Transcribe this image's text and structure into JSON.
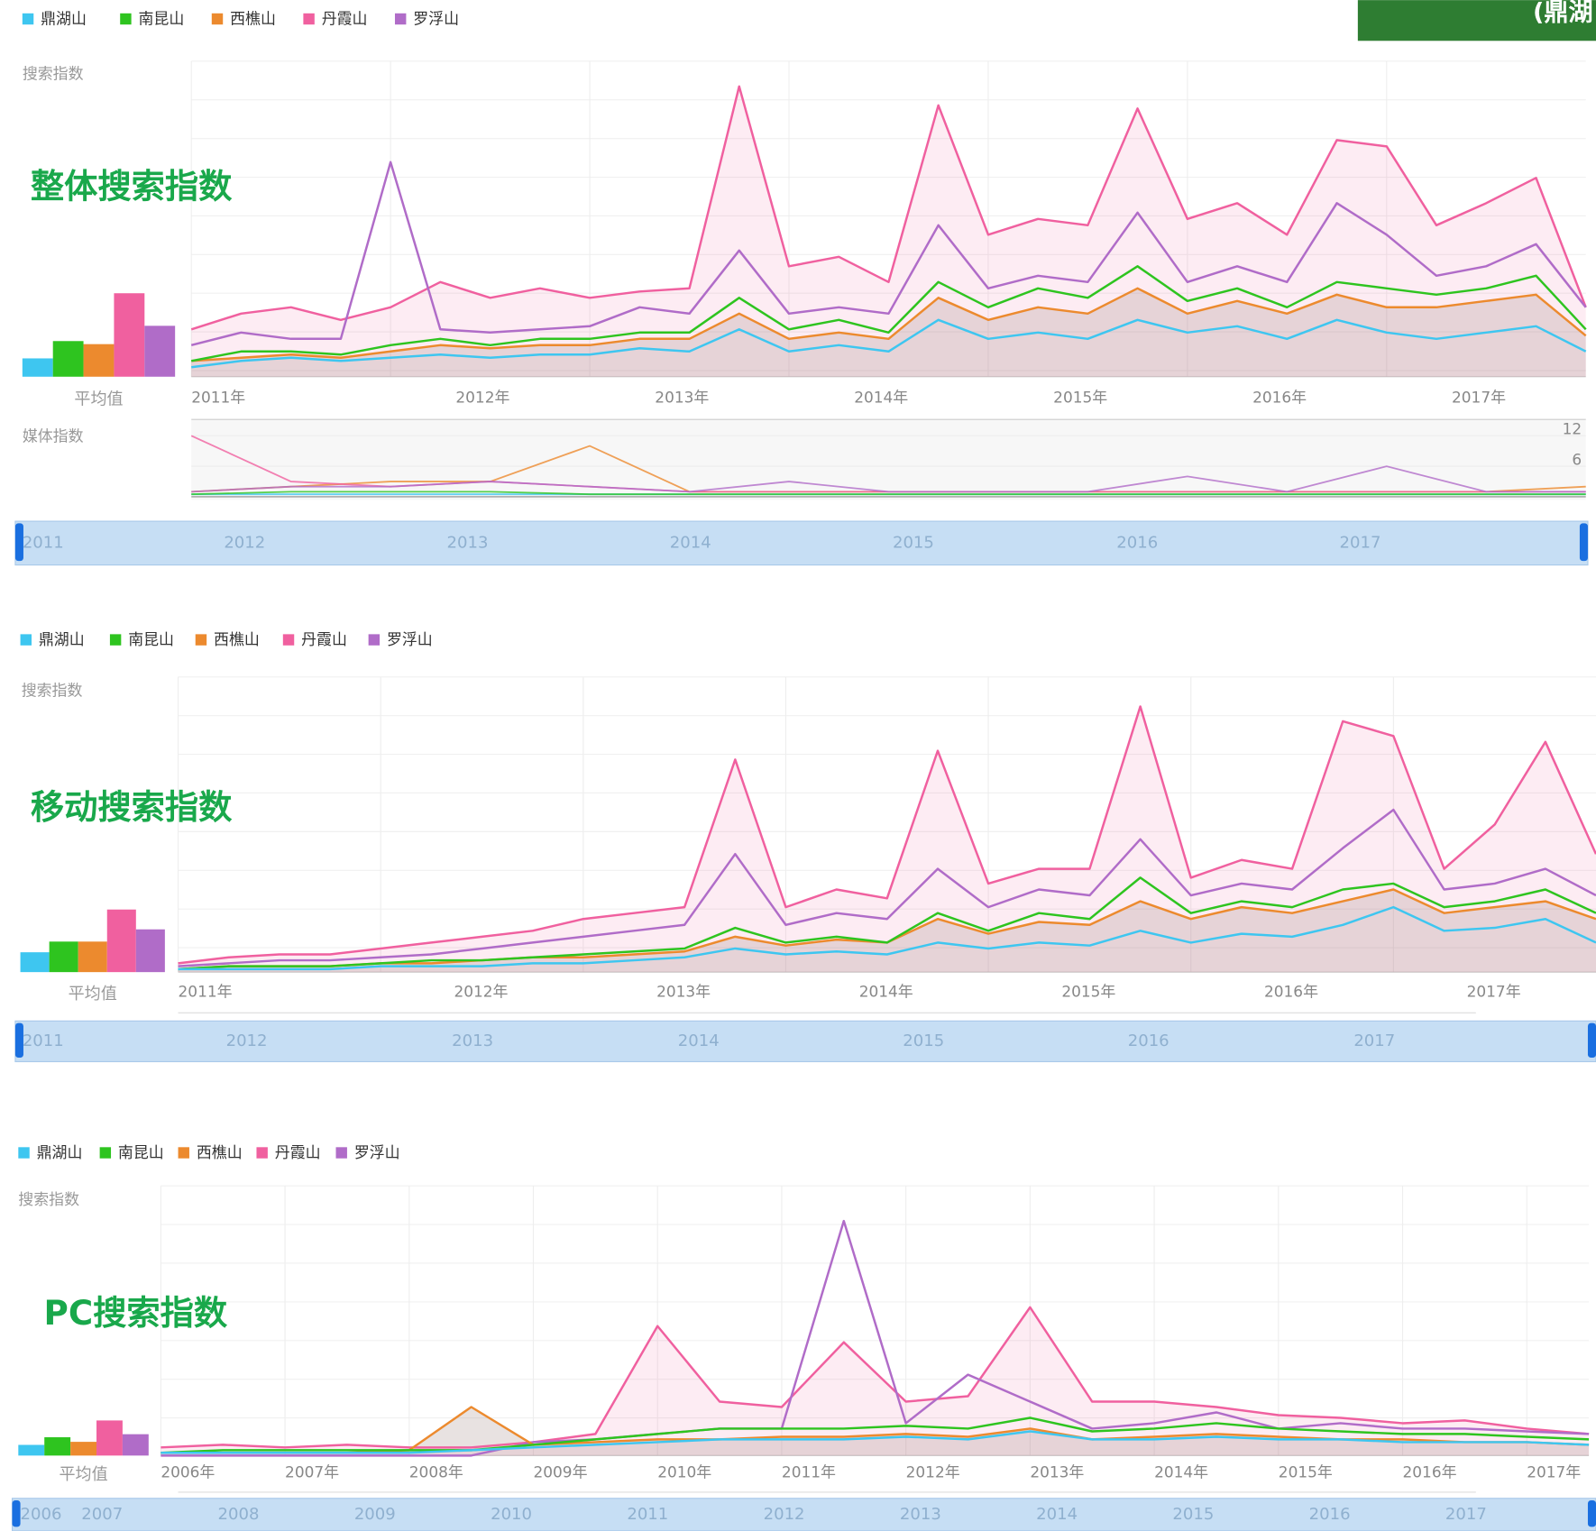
{
  "header_badge": "(鼎湖",
  "chart_data": [
    {
      "type": "line",
      "title": "整体搜索指数",
      "y_label": "搜索指数",
      "x": [
        2011,
        2011.25,
        2011.5,
        2011.75,
        2012,
        2012.25,
        2012.5,
        2012.75,
        2013,
        2013.25,
        2013.5,
        2013.75,
        2014,
        2014.25,
        2014.5,
        2014.75,
        2015,
        2015.25,
        2015.5,
        2015.75,
        2016,
        2016.25,
        2016.5,
        2016.75,
        2017,
        2017.25,
        2017.5,
        2017.75,
        2018
      ],
      "xlim": [
        2011,
        2018
      ],
      "xticks": [
        {
          "value": 2011,
          "label": "2011年"
        },
        {
          "value": 2012,
          "label": "2012年"
        },
        {
          "value": 2013,
          "label": "2013年"
        },
        {
          "value": 2014,
          "label": "2014年"
        },
        {
          "value": 2015,
          "label": "2015年"
        },
        {
          "value": 2016,
          "label": "2016年"
        },
        {
          "value": 2017,
          "label": "2017年"
        }
      ],
      "ylim": [
        0,
        100
      ],
      "grid": true,
      "series": [
        {
          "name": "鼎湖山",
          "color": "#3ec6f0",
          "values": [
            3,
            5,
            6,
            5,
            6,
            7,
            6,
            7,
            7,
            9,
            8,
            15,
            8,
            10,
            8,
            18,
            12,
            14,
            12,
            18,
            14,
            16,
            12,
            18,
            14,
            12,
            14,
            16,
            8
          ]
        },
        {
          "name": "南昆山",
          "color": "#2ec41f",
          "values": [
            5,
            8,
            8,
            7,
            10,
            12,
            10,
            12,
            12,
            14,
            14,
            25,
            15,
            18,
            14,
            30,
            22,
            28,
            25,
            35,
            24,
            28,
            22,
            30,
            28,
            26,
            28,
            32,
            15
          ]
        },
        {
          "name": "西樵山",
          "color": "#ec8a2e",
          "values": [
            5,
            6,
            7,
            6,
            8,
            10,
            9,
            10,
            10,
            12,
            12,
            20,
            12,
            14,
            12,
            25,
            18,
            22,
            20,
            28,
            20,
            24,
            20,
            26,
            22,
            22,
            24,
            26,
            13
          ]
        },
        {
          "name": "丹霞山",
          "color": "#f0609f",
          "values": [
            15,
            20,
            22,
            18,
            22,
            30,
            25,
            28,
            25,
            27,
            28,
            92,
            35,
            38,
            30,
            86,
            45,
            50,
            48,
            85,
            50,
            55,
            45,
            75,
            73,
            48,
            55,
            63,
            22
          ]
        },
        {
          "name": "罗浮山",
          "color": "#b06cc8",
          "values": [
            10,
            14,
            12,
            12,
            68,
            15,
            14,
            15,
            16,
            22,
            20,
            40,
            20,
            22,
            20,
            48,
            28,
            32,
            30,
            52,
            30,
            35,
            30,
            55,
            45,
            32,
            35,
            42,
            22
          ]
        }
      ],
      "average": {
        "label": "平均值",
        "values": [
          9,
          17.5,
          16,
          41,
          25
        ]
      },
      "media": {
        "label": "媒体指数",
        "x": [
          2011,
          2011.5,
          2012,
          2012.5,
          2013,
          2013.5,
          2014,
          2014.5,
          2015,
          2015.5,
          2016,
          2016.5,
          2017,
          2017.5,
          2018
        ],
        "ylim": [
          0,
          14
        ],
        "yticks": [
          6,
          12
        ],
        "series": [
          {
            "color": "#3ec6f0",
            "values": [
              0.5,
              0.5,
              0.5,
              0.5,
              0.5,
              0.5,
              0.5,
              0.5,
              0.5,
              0.5,
              0.5,
              0.5,
              0.5,
              0.5,
              0.5
            ]
          },
          {
            "color": "#2ec41f",
            "values": [
              0.5,
              1,
              1,
              1,
              0.5,
              0.5,
              0.5,
              0.5,
              0.5,
              0.5,
              0.5,
              0.5,
              0.5,
              0.5,
              0.5
            ]
          },
          {
            "color": "#ec8a2e",
            "values": [
              1,
              2,
              3,
              3,
              10,
              1,
              1,
              1,
              1,
              1,
              1,
              1,
              1,
              1,
              2
            ]
          },
          {
            "color": "#f0609f",
            "values": [
              12,
              3,
              2,
              3,
              2,
              1,
              1,
              1,
              1,
              1,
              1,
              1,
              1,
              1,
              1
            ]
          },
          {
            "color": "#b06cc8",
            "values": [
              1,
              2,
              2,
              3,
              2,
              1,
              3,
              1,
              1,
              1,
              4,
              1,
              6,
              1,
              1
            ]
          }
        ]
      },
      "navigator": [
        "2011",
        "2012",
        "2013",
        "2014",
        "2015",
        "2016",
        "2017"
      ]
    },
    {
      "type": "line",
      "title": "移动搜索指数",
      "y_label": "搜索指数",
      "x": [
        2011,
        2011.25,
        2011.5,
        2011.75,
        2012,
        2012.25,
        2012.5,
        2012.75,
        2013,
        2013.25,
        2013.5,
        2013.75,
        2014,
        2014.25,
        2014.5,
        2014.75,
        2015,
        2015.25,
        2015.5,
        2015.75,
        2016,
        2016.25,
        2016.5,
        2016.75,
        2017,
        2017.25,
        2017.5,
        2017.75,
        2018
      ],
      "xlim": [
        2011,
        2018
      ],
      "xticks": [
        {
          "value": 2011,
          "label": "2011年"
        },
        {
          "value": 2012,
          "label": "2012年"
        },
        {
          "value": 2013,
          "label": "2013年"
        },
        {
          "value": 2014,
          "label": "2014年"
        },
        {
          "value": 2015,
          "label": "2015年"
        },
        {
          "value": 2016,
          "label": "2016年"
        },
        {
          "value": 2017,
          "label": "2017年"
        }
      ],
      "ylim": [
        0,
        100
      ],
      "grid": true,
      "series": [
        {
          "name": "鼎湖山",
          "color": "#3ec6f0",
          "values": [
            1,
            1,
            1,
            1,
            2,
            2,
            2,
            3,
            3,
            4,
            5,
            8,
            6,
            7,
            6,
            10,
            8,
            10,
            9,
            14,
            10,
            13,
            12,
            16,
            22,
            14,
            15,
            18,
            10
          ]
        },
        {
          "name": "南昆山",
          "color": "#2ec41f",
          "values": [
            1,
            2,
            2,
            2,
            3,
            4,
            4,
            5,
            6,
            7,
            8,
            15,
            10,
            12,
            10,
            20,
            14,
            20,
            18,
            32,
            20,
            24,
            22,
            28,
            30,
            22,
            24,
            28,
            20
          ]
        },
        {
          "name": "西樵山",
          "color": "#ec8a2e",
          "values": [
            1,
            2,
            2,
            2,
            3,
            3,
            4,
            5,
            5,
            6,
            7,
            12,
            9,
            11,
            10,
            18,
            13,
            17,
            16,
            24,
            18,
            22,
            20,
            24,
            28,
            20,
            22,
            24,
            18
          ]
        },
        {
          "name": "丹霞山",
          "color": "#f0609f",
          "values": [
            3,
            5,
            6,
            6,
            8,
            10,
            12,
            14,
            18,
            20,
            22,
            72,
            22,
            28,
            25,
            75,
            30,
            35,
            35,
            90,
            32,
            38,
            35,
            85,
            80,
            35,
            50,
            78,
            40
          ]
        },
        {
          "name": "罗浮山",
          "color": "#b06cc8",
          "values": [
            2,
            3,
            4,
            4,
            5,
            6,
            8,
            10,
            12,
            14,
            16,
            40,
            16,
            20,
            18,
            35,
            22,
            28,
            26,
            45,
            26,
            30,
            28,
            42,
            55,
            28,
            30,
            35,
            26
          ]
        }
      ],
      "average": {
        "label": "平均值",
        "values": [
          13,
          20,
          20,
          41,
          28
        ]
      },
      "navigator": [
        "2011",
        "2012",
        "2013",
        "2014",
        "2015",
        "2016",
        "2017"
      ]
    },
    {
      "type": "line",
      "title": "PC搜索指数",
      "y_label": "搜索指数",
      "x": [
        2006,
        2006.5,
        2007,
        2007.5,
        2008,
        2008.5,
        2009,
        2009.5,
        2010,
        2010.5,
        2011,
        2011.5,
        2012,
        2012.5,
        2013,
        2013.5,
        2014,
        2014.5,
        2015,
        2015.5,
        2016,
        2016.5,
        2017,
        2017.5
      ],
      "xlim": [
        2006,
        2017.5
      ],
      "xticks": [
        {
          "value": 2006,
          "label": "2006年"
        },
        {
          "value": 2007,
          "label": "2007年"
        },
        {
          "value": 2008,
          "label": "2008年"
        },
        {
          "value": 2009,
          "label": "2009年"
        },
        {
          "value": 2010,
          "label": "2010年"
        },
        {
          "value": 2011,
          "label": "2011年"
        },
        {
          "value": 2012,
          "label": "2012年"
        },
        {
          "value": 2013,
          "label": "2013年"
        },
        {
          "value": 2014,
          "label": "2014年"
        },
        {
          "value": 2015,
          "label": "2015年"
        },
        {
          "value": 2016,
          "label": "2016年"
        },
        {
          "value": 2017,
          "label": "2017年"
        }
      ],
      "ylim": [
        0,
        100
      ],
      "grid": true,
      "series": [
        {
          "name": "鼎湖山",
          "color": "#3ec6f0",
          "values": [
            1,
            1,
            1,
            1,
            1,
            2,
            3,
            4,
            5,
            6,
            6,
            6,
            7,
            6,
            9,
            6,
            6,
            7,
            6,
            6,
            5,
            5,
            5,
            4
          ]
        },
        {
          "name": "南昆山",
          "color": "#2ec41f",
          "values": [
            1,
            2,
            2,
            2,
            2,
            2,
            4,
            6,
            8,
            10,
            10,
            10,
            11,
            10,
            14,
            9,
            10,
            12,
            10,
            9,
            8,
            8,
            7,
            6
          ]
        },
        {
          "name": "西樵山",
          "color": "#ec8a2e",
          "values": [
            1,
            1,
            1,
            1,
            2,
            18,
            4,
            5,
            6,
            6,
            7,
            7,
            8,
            7,
            10,
            6,
            7,
            8,
            7,
            6,
            6,
            5,
            5,
            4
          ]
        },
        {
          "name": "丹霞山",
          "color": "#f0609f",
          "values": [
            3,
            4,
            3,
            4,
            3,
            3,
            5,
            8,
            48,
            20,
            18,
            42,
            20,
            22,
            55,
            20,
            20,
            18,
            15,
            14,
            12,
            13,
            10,
            8
          ]
        },
        {
          "name": "罗浮山",
          "color": "#b06cc8",
          "values": [
            0,
            0,
            0,
            0,
            0,
            0,
            5,
            6,
            8,
            10,
            10,
            87,
            12,
            30,
            20,
            10,
            12,
            16,
            10,
            12,
            10,
            10,
            9,
            8
          ]
        }
      ],
      "average": {
        "label": "平均值",
        "values": [
          7,
          12,
          9,
          23,
          14
        ]
      },
      "navigator": [
        "2006",
        "2007",
        "2008",
        "2009",
        "2010",
        "2011",
        "2012",
        "2013",
        "2014",
        "2015",
        "2016",
        "2017"
      ]
    }
  ]
}
